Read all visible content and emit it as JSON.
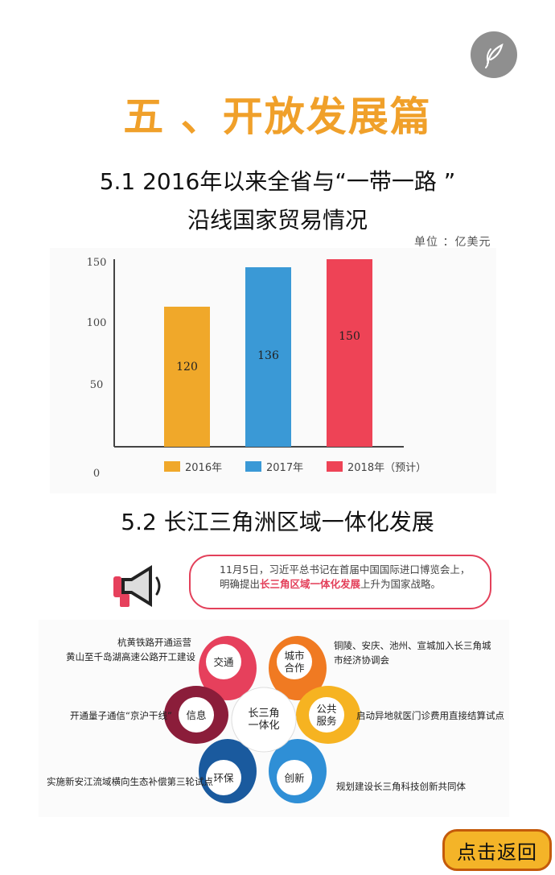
{
  "page": {
    "title": "五 、开放发展篇",
    "back_label": "点击返回",
    "logo_icon": "feather-logo-icon"
  },
  "section1": {
    "title_line1": "5.1  2016年以来全省与“一带一路 ”",
    "title_line2": "沿线国家贸易情况",
    "unit": "单位 ：亿美元"
  },
  "chart_data": {
    "type": "bar",
    "categories": [
      "2016年",
      "2017年",
      "2018年（预计）"
    ],
    "values": [
      120,
      136,
      150
    ],
    "value_labels": [
      "120",
      "136",
      "150"
    ],
    "colors": [
      "#f0a82a",
      "#3a99d6",
      "#ee4356"
    ],
    "yticks": [
      "0",
      "50",
      "100",
      "150"
    ],
    "ylim": [
      0,
      150
    ],
    "legend": [
      "2016年",
      "2017年",
      "2018年（预计）"
    ],
    "legend_position": "bottom",
    "grid": false
  },
  "section2": {
    "title": "5.2  长江三角洲区域一体化发展",
    "news_pre": "11月5日，习近平总书记在首届中国国际进口博览会上，明确提出",
    "news_highlight": "长三角区域一体化发展",
    "news_post": "上升为国家战略。",
    "center_line1": "长三角",
    "center_line2": "一体化",
    "petals": [
      {
        "label": "交通",
        "color": "#e6405c"
      },
      {
        "label1": "城市",
        "label2": "合作",
        "color": "#f07a22"
      },
      {
        "label1": "公共",
        "label2": "服务",
        "color": "#f6b321"
      },
      {
        "label": "创新",
        "color": "#2f8fd6"
      },
      {
        "label": "环保",
        "color": "#1a5a9e"
      },
      {
        "label": "信息",
        "color": "#8b1d3a"
      }
    ],
    "notes": {
      "jiaotong_1": "杭黄铁路开通运营",
      "jiaotong_2": "黄山至千岛湖高速公路开工建设",
      "chengshi_1": "铜陵、安庆、池州、宣城加入长三角城",
      "chengshi_2": "市经济协调会",
      "gonggong": "启动异地就医门诊费用直接结算试点",
      "chuangxin": "规划建设长三角科技创新共同体",
      "huanbao": "实施新安江流域横向生态补偿第三轮试点",
      "xinxi": "开通量子通信“京沪干线”"
    }
  }
}
